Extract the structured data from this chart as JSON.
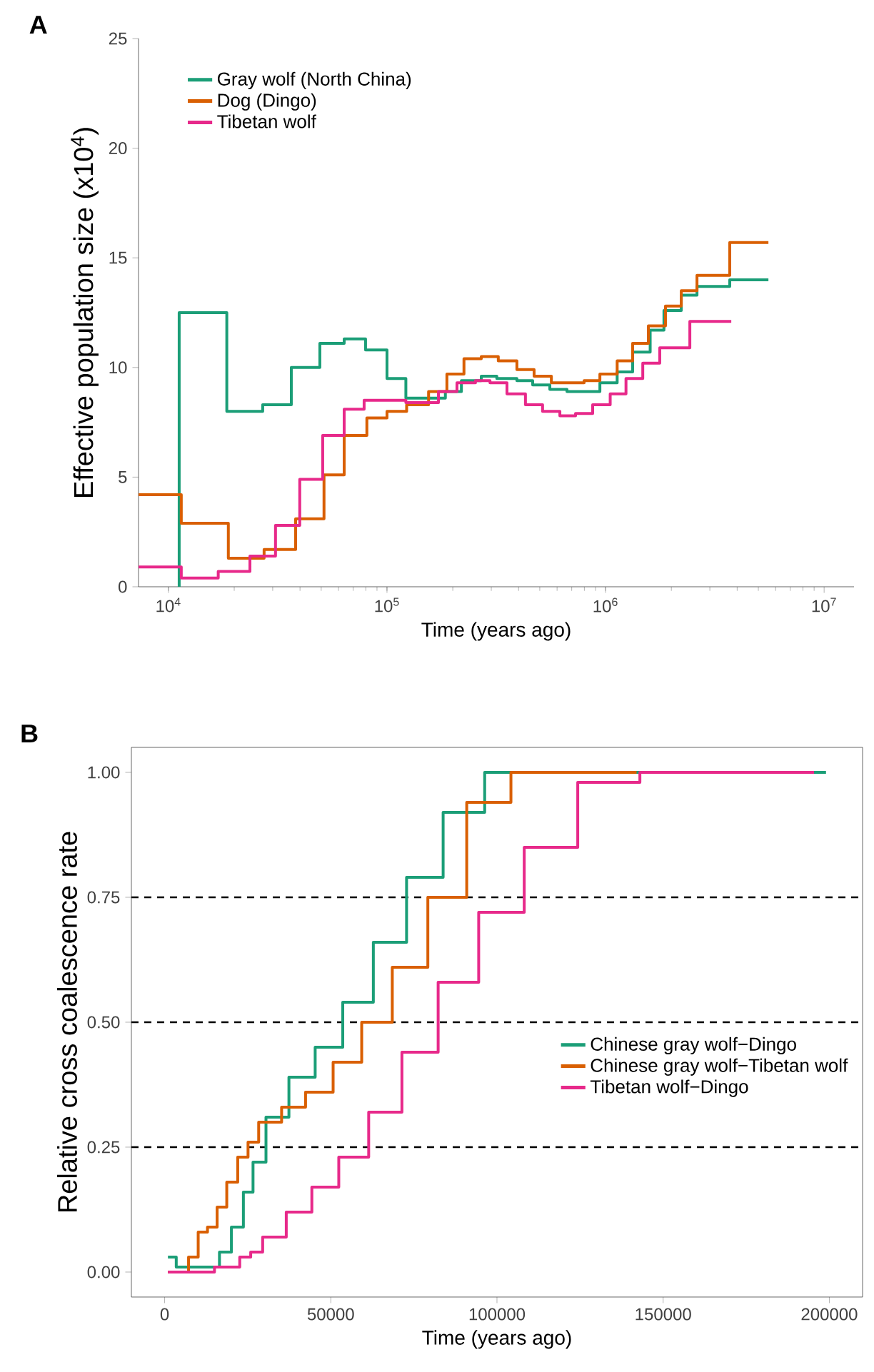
{
  "chart_data": [
    {
      "type": "step",
      "xlabel": "Time (years ago)",
      "ylabel": "Effective population size (x10$^{4}$)",
      "annotations": [
        "A"
      ],
      "log": "x",
      "legend": "top left",
      "xlim": [
        7300,
        13700000
      ],
      "ylim": [
        0,
        25
      ],
      "xticks": [
        {
          "value": 10000,
          "label": "10$^{4}$"
        },
        {
          "value": 100000,
          "label": "10$^{5}$"
        },
        {
          "value": 1000000,
          "label": "10$^{6}$"
        },
        {
          "value": 10000000,
          "label": "10$^{7}$"
        }
      ],
      "yticks": [
        0,
        5,
        10,
        15,
        20,
        25
      ],
      "series": [
        {
          "name": "Gray wolf (North China)",
          "color": "#1b9e77",
          "x": [
            11200,
            11200,
            18500,
            27000,
            36500,
            49300,
            63700,
            79800,
            100000,
            122000,
            185000,
            219000,
            270000,
            318000,
            393000,
            464000,
            556000,
            666000,
            942000,
            1130000,
            1330000,
            1600000,
            1850000,
            2220000,
            2620000,
            3700000,
            5560000
          ],
          "values": [
            0,
            12.5,
            8.0,
            8.3,
            10.0,
            11.1,
            11.3,
            10.8,
            9.5,
            8.6,
            8.9,
            9.4,
            9.6,
            9.5,
            9.4,
            9.2,
            9.0,
            8.9,
            9.3,
            9.8,
            10.7,
            11.7,
            12.6,
            13.3,
            13.7,
            14.0,
            14.0
          ]
        },
        {
          "name": "Dog (Dingo)",
          "color": "#d95f02",
          "x": [
            7300,
            11450,
            18800,
            27400,
            38200,
            51500,
            63700,
            80900,
            100000,
            123000,
            155000,
            188000,
            225000,
            270000,
            323000,
            393000,
            471000,
            565000,
            798000,
            942000,
            1130000,
            1330000,
            1570000,
            1880000,
            2220000,
            2620000,
            3700000,
            5560000
          ],
          "values": [
            4.2,
            2.9,
            1.3,
            1.7,
            3.1,
            5.1,
            6.9,
            7.7,
            8.0,
            8.3,
            8.9,
            9.7,
            10.4,
            10.5,
            10.3,
            9.9,
            9.6,
            9.3,
            9.4,
            9.7,
            10.3,
            11.1,
            11.9,
            12.8,
            13.5,
            14.2,
            15.7,
            15.7
          ]
        },
        {
          "name": "Tibetan wolf",
          "color": "#e7298a",
          "x": [
            7300,
            11450,
            16900,
            23600,
            30900,
            39900,
            50800,
            63700,
            78600,
            122000,
            172000,
            209000,
            254000,
            296000,
            354000,
            430000,
            515000,
            618000,
            729000,
            873000,
            1050000,
            1240000,
            1480000,
            1770000,
            2430000,
            3760000
          ],
          "values": [
            0.9,
            0.4,
            0.7,
            1.4,
            2.8,
            4.9,
            6.9,
            8.1,
            8.5,
            8.4,
            8.9,
            9.3,
            9.4,
            9.3,
            8.8,
            8.3,
            8.0,
            7.8,
            7.9,
            8.3,
            8.8,
            9.5,
            10.2,
            10.9,
            12.1,
            12.1
          ]
        }
      ]
    },
    {
      "type": "step",
      "xlabel": "Time (years ago)",
      "ylabel": "Relative cross coalescence rate",
      "annotations": [
        "B"
      ],
      "legend": "right",
      "xlim": [
        -10000,
        210000
      ],
      "ylim": [
        -0.05,
        1.05
      ],
      "xticks": [
        0,
        50000,
        100000,
        150000,
        200000
      ],
      "yticks": [
        {
          "value": 0,
          "label": "0.00"
        },
        {
          "value": 0.25,
          "label": "0.25"
        },
        {
          "value": 0.5,
          "label": "0.50"
        },
        {
          "value": 0.75,
          "label": "0.75"
        },
        {
          "value": 1,
          "label": "1.00"
        }
      ],
      "ref_lines": [
        {
          "axis": "y",
          "value": 0.25,
          "color": "#000000",
          "line_style": "dashed"
        },
        {
          "axis": "y",
          "value": 0.5,
          "color": "#000000",
          "line_style": "dashed"
        },
        {
          "axis": "y",
          "value": 0.75,
          "color": "#000000",
          "line_style": "dashed"
        }
      ],
      "series": [
        {
          "name": "Chinese gray wolf−Dingo",
          "color": "#1b9e77",
          "x": [
            1000,
            3500,
            16500,
            20100,
            23700,
            26600,
            30500,
            37400,
            45300,
            53600,
            62800,
            72800,
            83800,
            96300,
            199000
          ],
          "values": [
            0.03,
            0.01,
            0.04,
            0.09,
            0.16,
            0.22,
            0.31,
            0.39,
            0.45,
            0.54,
            0.66,
            0.79,
            0.92,
            1.0,
            1.0
          ]
        },
        {
          "name": "Chinese gray wolf−Tibetan wolf",
          "color": "#d95f02",
          "x": [
            1000,
            7200,
            10100,
            12900,
            15800,
            18700,
            22000,
            25100,
            28300,
            35200,
            42400,
            50700,
            59300,
            68500,
            79200,
            90900,
            104200,
            142000
          ],
          "values": [
            0.0,
            0.03,
            0.08,
            0.09,
            0.13,
            0.18,
            0.23,
            0.26,
            0.3,
            0.33,
            0.36,
            0.42,
            0.5,
            0.61,
            0.75,
            0.94,
            1.0,
            1.0
          ]
        },
        {
          "name": "Tibetan wolf−Dingo",
          "color": "#e7298a",
          "x": [
            1000,
            15000,
            22600,
            25900,
            29500,
            36600,
            44300,
            52400,
            61400,
            71400,
            82300,
            94500,
            108200,
            124300,
            143000,
            195400
          ],
          "values": [
            0.0,
            0.01,
            0.03,
            0.04,
            0.07,
            0.12,
            0.17,
            0.23,
            0.32,
            0.44,
            0.58,
            0.72,
            0.85,
            0.98,
            1.0,
            1.0
          ]
        }
      ]
    }
  ]
}
